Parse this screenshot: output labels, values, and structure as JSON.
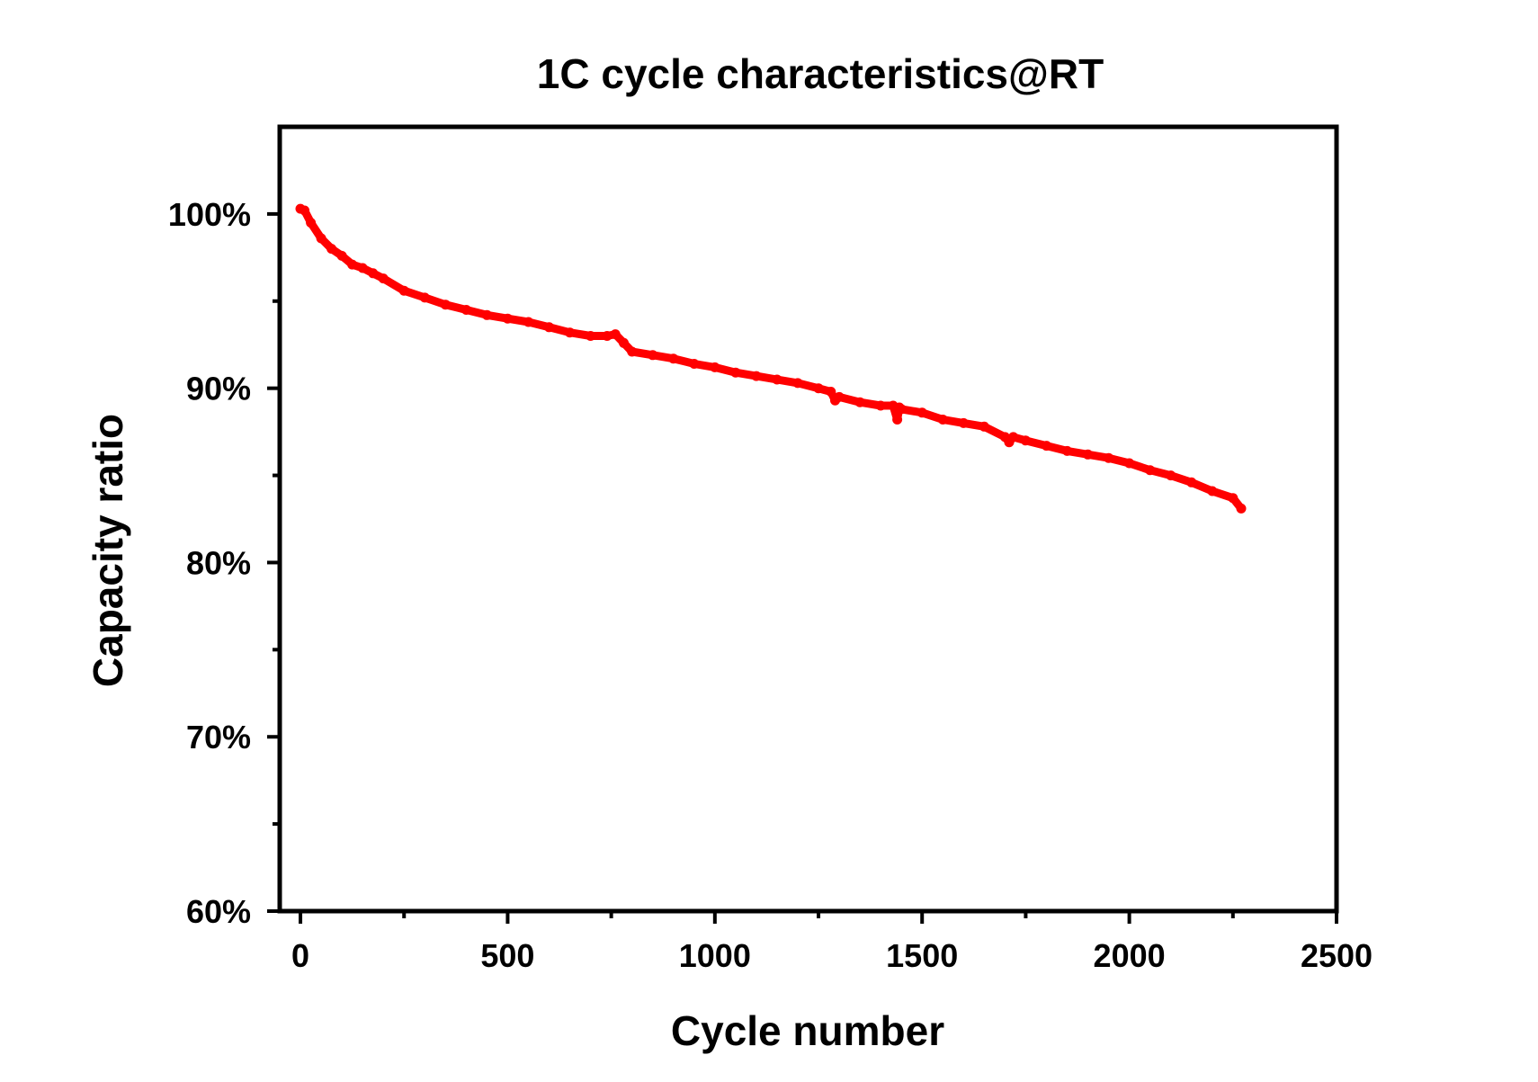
{
  "chart_data": {
    "type": "scatter",
    "title": "1C cycle characteristics@RT",
    "xlabel": "Cycle number",
    "ylabel": "Capacity ratio",
    "xlim": [
      -50,
      2500
    ],
    "ylim": [
      60,
      105
    ],
    "x_ticks": [
      0,
      500,
      1000,
      1500,
      2000,
      2500
    ],
    "x_tick_labels": [
      "0",
      "500",
      "1000",
      "1500",
      "2000",
      "2500"
    ],
    "x_minor_ticks": [
      250,
      750,
      1250,
      1750,
      2250
    ],
    "y_ticks": [
      60,
      70,
      80,
      90,
      100
    ],
    "y_tick_labels": [
      "60%",
      "70%",
      "80%",
      "90%",
      "100%"
    ],
    "y_minor_ticks": [
      65,
      75,
      85,
      95
    ],
    "grid": false,
    "legend": "none",
    "series": [
      {
        "color": "#ff0000",
        "marker": "dot",
        "x": [
          0,
          10,
          25,
          50,
          75,
          100,
          125,
          150,
          175,
          200,
          250,
          300,
          350,
          400,
          450,
          500,
          550,
          600,
          650,
          700,
          740,
          760,
          780,
          800,
          850,
          900,
          950,
          1000,
          1050,
          1100,
          1150,
          1200,
          1250,
          1280,
          1290,
          1300,
          1350,
          1400,
          1430,
          1440,
          1445,
          1450,
          1500,
          1550,
          1600,
          1650,
          1700,
          1710,
          1720,
          1750,
          1800,
          1850,
          1900,
          1950,
          2000,
          2050,
          2100,
          2150,
          2200,
          2250,
          2270
        ],
        "y": [
          100.3,
          100.2,
          99.5,
          98.6,
          98.0,
          97.6,
          97.1,
          96.9,
          96.6,
          96.3,
          95.6,
          95.2,
          94.8,
          94.5,
          94.2,
          94.0,
          93.8,
          93.5,
          93.2,
          93.0,
          93.0,
          93.1,
          92.6,
          92.1,
          91.9,
          91.7,
          91.4,
          91.2,
          90.9,
          90.7,
          90.5,
          90.3,
          90.0,
          89.8,
          89.3,
          89.5,
          89.2,
          89.0,
          89.0,
          88.2,
          88.9,
          88.8,
          88.6,
          88.2,
          88.0,
          87.8,
          87.2,
          86.9,
          87.2,
          87.0,
          86.7,
          86.4,
          86.2,
          86.0,
          85.7,
          85.3,
          85.0,
          84.6,
          84.1,
          83.7,
          83.1
        ]
      }
    ]
  }
}
